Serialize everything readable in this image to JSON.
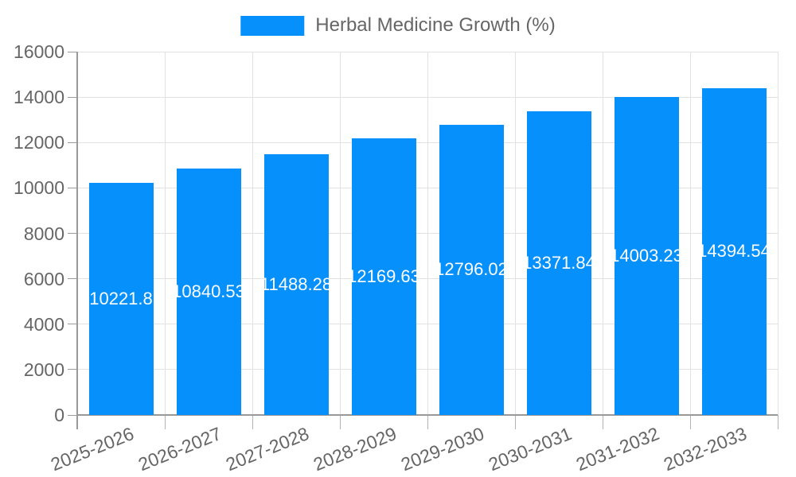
{
  "legend": {
    "label": "Herbal Medicine Growth (%)"
  },
  "colors": {
    "bar": "#0590fb",
    "text": "#666666",
    "grid": "#e2e2e2",
    "axis": "#999999",
    "tick": "#b3b3b3",
    "value_label": "#ffffff",
    "background": "#ffffff"
  },
  "chart_data": {
    "type": "bar",
    "title": "Herbal Medicine Growth (%)",
    "legend_entries": [
      "Herbal Medicine Growth (%)"
    ],
    "legend_position": "top-center",
    "categories": [
      "2025-2026",
      "2026-2027",
      "2027-2028",
      "2028-2029",
      "2029-2030",
      "2030-2031",
      "2031-2032",
      "2032-2033"
    ],
    "values": [
      10221.8,
      10840.53,
      11488.28,
      12169.63,
      12796.02,
      13371.84,
      14003.23,
      14394.54
    ],
    "value_labels": [
      "10221.8",
      "10840.53",
      "11488.28",
      "12169.63",
      "12796.02",
      "13371.84",
      "14003.23",
      "14394.54"
    ],
    "xlabel": "",
    "ylabel": "",
    "ylim": [
      0,
      16000
    ],
    "yticks": [
      0,
      2000,
      4000,
      6000,
      8000,
      10000,
      12000,
      14000,
      16000
    ],
    "grid": true,
    "xtick_rotation_deg": -22,
    "bar_labels_inside": true
  }
}
